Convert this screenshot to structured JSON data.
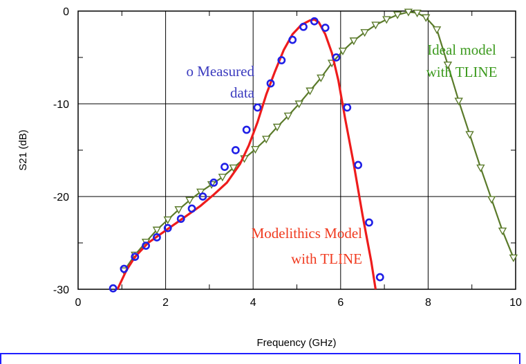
{
  "chart_data": {
    "type": "line",
    "xlabel": "Frequency (GHz)",
    "ylabel": "S21 (dB)",
    "xlim": [
      0,
      10
    ],
    "ylim": [
      -30,
      0
    ],
    "x_ticks": [
      "0",
      "2",
      "4",
      "6",
      "8",
      "10"
    ],
    "y_ticks": [
      "0",
      "-10",
      "-20",
      "-30"
    ],
    "grid": true,
    "annotations": [
      {
        "id": "measured",
        "lines": [
          "o Measured",
          "data"
        ],
        "color": "#3b3bbf"
      },
      {
        "id": "ideal",
        "lines": [
          "Ideal model",
          "with TLINE"
        ],
        "color": "#3c9a1e"
      },
      {
        "id": "modelithics",
        "lines": [
          "Modelithics Model",
          "with TLINE"
        ],
        "color": "#f03a1f"
      }
    ],
    "series": [
      {
        "marker": "circle",
        "color": "#1f1fe6",
        "x": [
          0.8,
          1.05,
          1.3,
          1.55,
          1.8,
          2.05,
          2.35,
          2.6,
          2.85,
          3.1,
          3.35,
          3.6,
          3.85,
          4.1,
          4.4,
          4.65,
          4.9,
          5.15,
          5.4,
          5.65,
          5.9,
          6.15,
          6.4,
          6.65,
          6.9
        ],
        "y": [
          -29.9,
          -27.8,
          -26.5,
          -25.3,
          -24.4,
          -23.4,
          -22.4,
          -21.3,
          -20.0,
          -18.5,
          -16.8,
          -15.0,
          -12.8,
          -10.4,
          -7.8,
          -5.3,
          -3.1,
          -1.7,
          -1.1,
          -1.8,
          -5.0,
          -10.4,
          -16.6,
          -22.8,
          -28.7
        ]
      },
      {
        "marker": "none",
        "color": "#ee1c1c",
        "x": [
          0.9,
          1.1,
          1.3,
          1.6,
          1.9,
          2.2,
          2.5,
          2.8,
          3.1,
          3.4,
          3.7,
          3.9,
          4.1,
          4.3,
          4.5,
          4.7,
          4.9,
          5.1,
          5.3,
          5.4,
          5.5,
          5.65,
          5.8,
          5.95,
          6.1,
          6.3,
          6.5,
          6.7,
          6.8
        ],
        "y": [
          -30.0,
          -28.0,
          -26.5,
          -25.0,
          -24.0,
          -23.0,
          -22.0,
          -21.0,
          -19.8,
          -18.5,
          -16.5,
          -14.5,
          -12.0,
          -9.0,
          -6.5,
          -4.2,
          -2.5,
          -1.5,
          -1.0,
          -0.9,
          -1.2,
          -2.5,
          -4.5,
          -7.5,
          -11.5,
          -16.5,
          -22.0,
          -27.0,
          -30.0
        ]
      },
      {
        "marker": "triangle-down",
        "color": "#5a7a2a",
        "x": [
          1.05,
          1.3,
          1.55,
          1.8,
          2.05,
          2.3,
          2.55,
          2.8,
          3.05,
          3.3,
          3.55,
          3.8,
          4.05,
          4.3,
          4.55,
          4.8,
          5.05,
          5.3,
          5.55,
          5.8,
          6.05,
          6.3,
          6.55,
          6.8,
          7.05,
          7.3,
          7.55,
          7.75,
          7.95,
          8.2,
          8.45,
          8.7,
          8.95,
          9.2,
          9.45,
          9.7,
          9.95
        ],
        "y": [
          -28.0,
          -26.3,
          -24.9,
          -23.6,
          -22.5,
          -21.4,
          -20.4,
          -19.5,
          -18.7,
          -17.9,
          -16.9,
          -15.9,
          -14.9,
          -13.8,
          -12.5,
          -11.3,
          -10.0,
          -8.6,
          -7.2,
          -5.6,
          -4.3,
          -3.2,
          -2.3,
          -1.5,
          -0.9,
          -0.4,
          -0.1,
          -0.2,
          -0.7,
          -2.0,
          -5.8,
          -9.7,
          -13.3,
          -16.9,
          -20.3,
          -23.7,
          -26.6
        ]
      }
    ]
  }
}
